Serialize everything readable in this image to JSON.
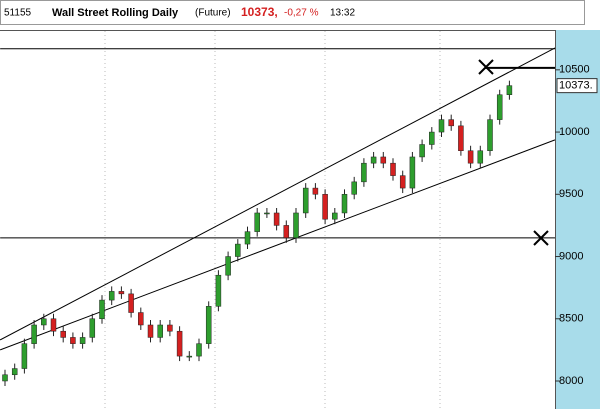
{
  "header": {
    "code": "51155",
    "name": "Wall Street Rolling Daily",
    "kind": "(Future)",
    "price": "10373,",
    "change": "-0,27 %",
    "time": "13:32"
  },
  "chart_data": {
    "type": "candlestick",
    "price_label": "10373.",
    "up_color": "#2e9e2e",
    "down_color": "#d42020",
    "ylim": [
      7775,
      10820
    ],
    "yticks": [
      8000,
      8500,
      9000,
      9500,
      10000,
      10500
    ],
    "open": [
      8000,
      8050,
      8100,
      8300,
      8450,
      8500,
      8400,
      8350,
      8300,
      8350,
      8500,
      8650,
      8720,
      8700,
      8550,
      8450,
      8350,
      8450,
      8400,
      8200,
      8200,
      8300,
      8600,
      8850,
      9000,
      9100,
      9200,
      9350,
      9350,
      9250,
      9150,
      9350,
      9550,
      9500,
      9300,
      9350,
      9500,
      9600,
      9750,
      9800,
      9750,
      9650,
      9550,
      9800,
      9900,
      10000,
      10100,
      10050,
      9850,
      9750,
      9850,
      10100,
      10300
    ],
    "high": [
      8090,
      8140,
      8340,
      8490,
      8540,
      8540,
      8440,
      8390,
      8390,
      8540,
      8690,
      8760,
      8760,
      8740,
      8590,
      8490,
      8490,
      8490,
      8440,
      8240,
      8340,
      8640,
      8890,
      9040,
      9140,
      9240,
      9390,
      9390,
      9390,
      9290,
      9390,
      9590,
      9590,
      9540,
      9390,
      9540,
      9640,
      9790,
      9840,
      9840,
      9790,
      9690,
      9840,
      9940,
      10040,
      10140,
      10140,
      10090,
      9890,
      9890,
      10140,
      10340,
      10413
    ],
    "low": [
      7960,
      8010,
      8060,
      8260,
      8410,
      8360,
      8310,
      8260,
      8260,
      8310,
      8460,
      8610,
      8660,
      8510,
      8410,
      8310,
      8310,
      8360,
      8160,
      8160,
      8160,
      8260,
      8560,
      8810,
      8960,
      9060,
      9160,
      9310,
      9210,
      9110,
      9110,
      9310,
      9460,
      9260,
      9260,
      9310,
      9460,
      9560,
      9710,
      9710,
      9610,
      9510,
      9510,
      9760,
      9860,
      9960,
      10010,
      9810,
      9710,
      9710,
      9810,
      10060,
      10260
    ],
    "close": [
      8050,
      8100,
      8300,
      8450,
      8500,
      8400,
      8350,
      8300,
      8350,
      8500,
      8650,
      8720,
      8700,
      8550,
      8450,
      8350,
      8450,
      8400,
      8200,
      8200,
      8300,
      8600,
      8850,
      9000,
      9100,
      9200,
      9350,
      9350,
      9250,
      9150,
      9350,
      9550,
      9500,
      9300,
      9350,
      9500,
      9600,
      9750,
      9800,
      9750,
      9650,
      9550,
      9800,
      9900,
      10000,
      10100,
      10050,
      9850,
      9750,
      9850,
      10100,
      10300,
      10373
    ],
    "lines": [
      {
        "from": [
          -0.5,
          8330
        ],
        "to": [
          56.7,
          10676
        ]
      },
      {
        "from": [
          -0.5,
          8250
        ],
        "to": [
          56.7,
          9937
        ]
      },
      {
        "from": [
          -0.5,
          10669
        ],
        "to": [
          56.7,
          10669
        ]
      },
      {
        "from": [
          -0.5,
          9150
        ],
        "to": [
          56.7,
          9150
        ]
      },
      {
        "from": [
          49.5,
          10516
        ],
        "to": [
          56.7,
          10516
        ]
      }
    ]
  }
}
